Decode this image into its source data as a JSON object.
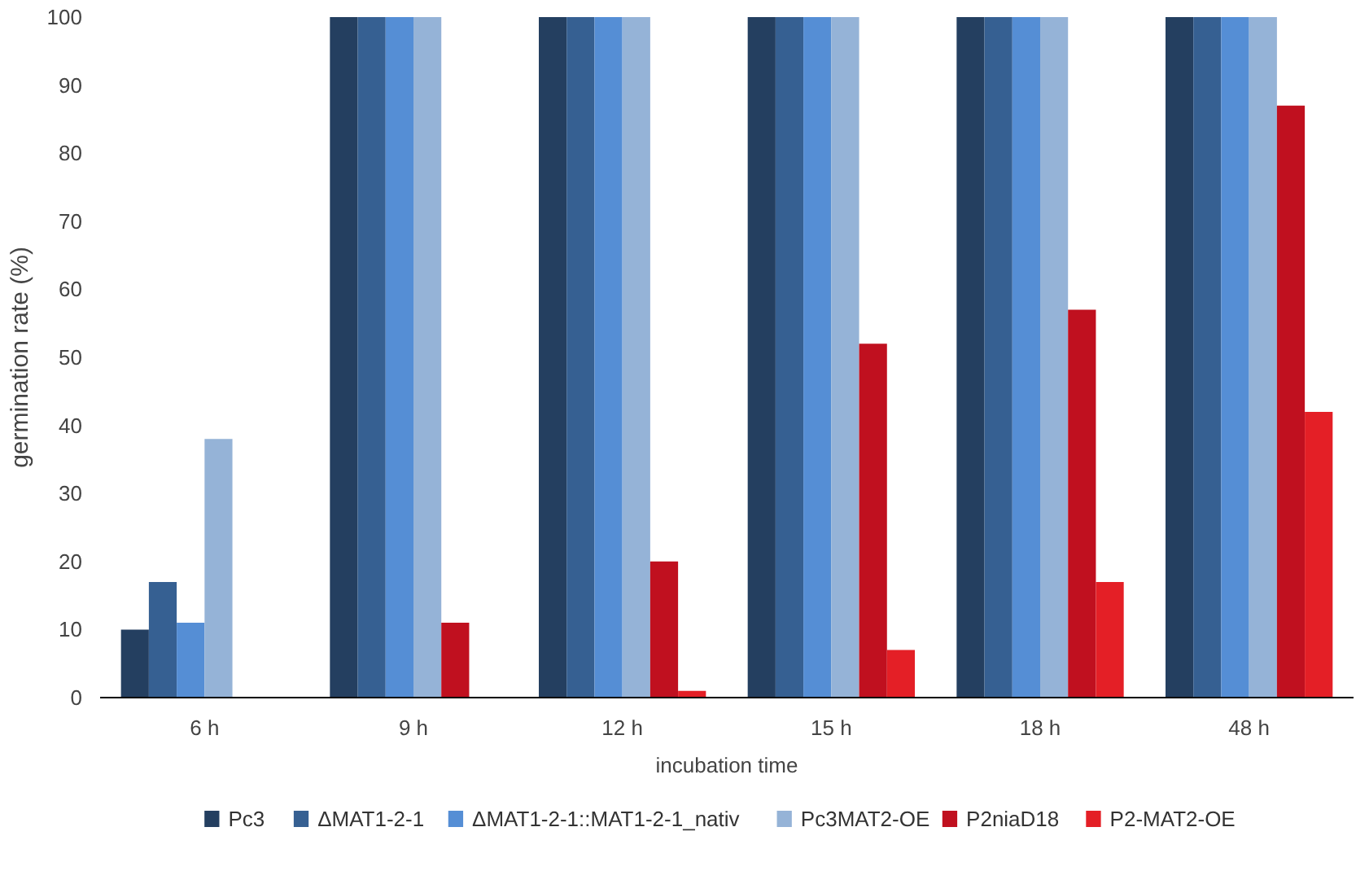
{
  "chart_data": {
    "type": "bar",
    "xlabel": "incubation time",
    "ylabel": "germination rate (%)",
    "categories": [
      "6 h",
      "9 h",
      "12 h",
      "15 h",
      "18 h",
      "48 h"
    ],
    "series": [
      {
        "name": "Pc3",
        "color": "#243f60",
        "values": [
          10,
          100,
          100,
          100,
          100,
          100
        ]
      },
      {
        "name": "ΔMAT1-2-1",
        "color": "#366092",
        "values": [
          17,
          100,
          100,
          100,
          100,
          100
        ]
      },
      {
        "name": "ΔMAT1-2-1::MAT1-2-1_nativ",
        "color": "#558ed5",
        "values": [
          11,
          100,
          100,
          100,
          100,
          100
        ]
      },
      {
        "name": "Pc3MAT2-OE",
        "color": "#95b3d7",
        "values": [
          38,
          100,
          100,
          100,
          100,
          100
        ]
      },
      {
        "name": "P2niaD18",
        "color": "#c0101f",
        "values": [
          0,
          11,
          20,
          52,
          57,
          87
        ]
      },
      {
        "name": "P2-MAT2-OE",
        "color": "#e41f26",
        "values": [
          0,
          0,
          1,
          7,
          17,
          42
        ]
      }
    ],
    "ylim": [
      0,
      100
    ],
    "yticks": [
      0,
      10,
      20,
      30,
      40,
      50,
      60,
      70,
      80,
      90,
      100
    ],
    "grid": false,
    "legend": "bottom"
  }
}
